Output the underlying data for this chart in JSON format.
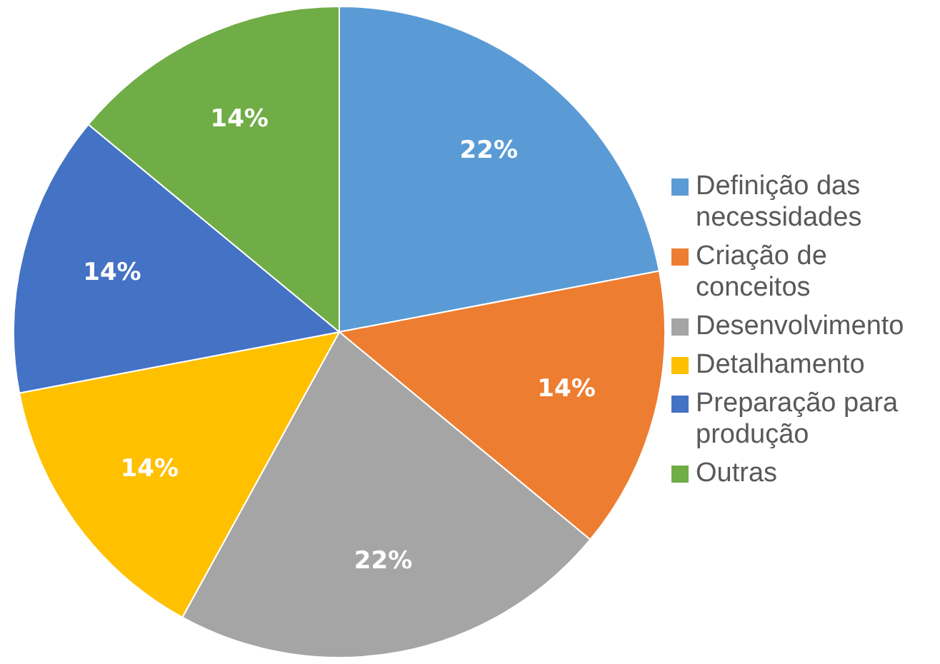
{
  "chart_data": {
    "type": "pie",
    "categories": [
      "Definição das necessidades",
      "Criação de conceitos",
      "Desenvolvimento",
      "Detalhamento",
      "Preparação para produção",
      "Outras"
    ],
    "values": [
      22,
      14,
      22,
      14,
      14,
      14
    ],
    "colors": [
      "#5b9bd5",
      "#ed7d31",
      "#a5a5a5",
      "#ffc000",
      "#4472c4",
      "#70ad47"
    ],
    "value_labels": [
      "22%",
      "14%",
      "22%",
      "14%",
      "14%",
      "14%"
    ],
    "legend": "right"
  }
}
